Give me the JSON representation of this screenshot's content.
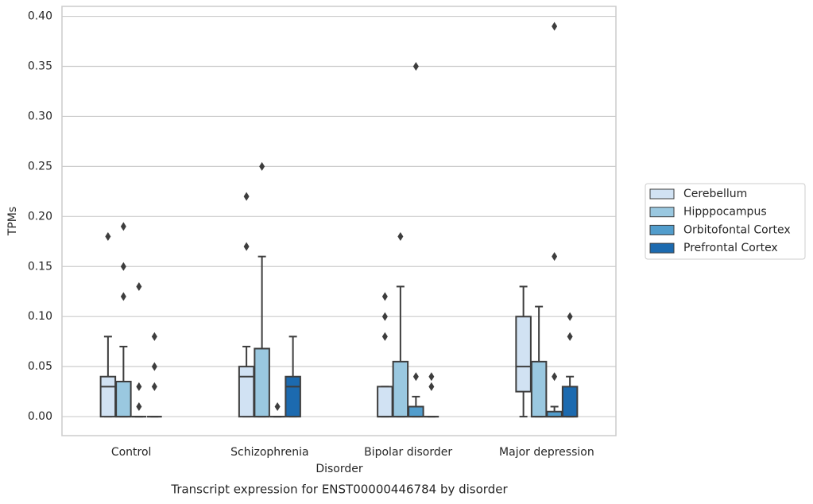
{
  "chart_data": {
    "type": "box",
    "title": "Transcript expression for ENST00000446784 by disorder",
    "x_label": "Disorder",
    "y_label": "TPMs",
    "categories": [
      "Control",
      "Schizophrenia",
      "Bipolar disorder",
      "Major depression"
    ],
    "ylim": [
      -0.019,
      0.41
    ],
    "yticks": [
      {
        "value": 0,
        "label": "0.00"
      },
      {
        "value": 0.05,
        "label": "0.05"
      },
      {
        "value": 0.1,
        "label": "0.10"
      },
      {
        "value": 0.15,
        "label": "0.15"
      },
      {
        "value": 0.2,
        "label": "0.20"
      },
      {
        "value": 0.25,
        "label": "0.25"
      },
      {
        "value": 0.3,
        "label": "0.30"
      },
      {
        "value": 0.35,
        "label": "0.35"
      },
      {
        "value": 0.4,
        "label": "0.40"
      }
    ],
    "grid": true,
    "legend": "right",
    "series": [
      {
        "name": "Cerebellum",
        "color": "#d1e2f3",
        "values": [
          {
            "whislo": 0,
            "q1": 0,
            "med": 0.03,
            "q3": 0.04,
            "whishi": 0.08,
            "fliers": [
              0.18
            ]
          },
          {
            "whislo": 0,
            "q1": 0,
            "med": 0.04,
            "q3": 0.05,
            "whishi": 0.07,
            "fliers": [
              0.22,
              0.17
            ]
          },
          {
            "whislo": 0,
            "q1": 0,
            "med": 0,
            "q3": 0.03,
            "whishi": 0.03,
            "fliers": [
              0.12,
              0.1,
              0.08
            ]
          },
          {
            "whislo": 0,
            "q1": 0.025,
            "med": 0.05,
            "q3": 0.1,
            "whishi": 0.13,
            "fliers": []
          }
        ]
      },
      {
        "name": "Hipppocampus",
        "color": "#9ac8e0",
        "values": [
          {
            "whislo": 0,
            "q1": 0,
            "med": 0,
            "q3": 0.035,
            "whishi": 0.07,
            "fliers": [
              0.19,
              0.15,
              0.12
            ]
          },
          {
            "whislo": 0,
            "q1": 0,
            "med": 0,
            "q3": 0.068,
            "whishi": 0.16,
            "fliers": [
              0.25
            ]
          },
          {
            "whislo": 0,
            "q1": 0,
            "med": 0,
            "q3": 0.055,
            "whishi": 0.13,
            "fliers": [
              0.18
            ]
          },
          {
            "whislo": 0,
            "q1": 0,
            "med": 0,
            "q3": 0.055,
            "whishi": 0.11,
            "fliers": []
          }
        ]
      },
      {
        "name": "Orbitofontal Cortex",
        "color": "#529dcc",
        "values": [
          {
            "whislo": 0,
            "q1": 0,
            "med": 0,
            "q3": 0,
            "whishi": 0,
            "fliers": [
              0.13,
              0.03,
              0.01
            ]
          },
          {
            "whislo": 0,
            "q1": 0,
            "med": 0,
            "q3": 0,
            "whishi": 0,
            "fliers": [
              0.01
            ]
          },
          {
            "whislo": 0,
            "q1": 0,
            "med": 0,
            "q3": 0.01,
            "whishi": 0.02,
            "fliers": [
              0.35,
              0.04
            ]
          },
          {
            "whislo": 0,
            "q1": 0,
            "med": 0,
            "q3": 0.005,
            "whishi": 0.01,
            "fliers": [
              0.39,
              0.16,
              0.04
            ]
          }
        ]
      },
      {
        "name": "Prefrontal Cortex",
        "color": "#1c6aaf",
        "values": [
          {
            "whislo": 0,
            "q1": 0,
            "med": 0,
            "q3": 0,
            "whishi": 0,
            "fliers": [
              0.08,
              0.05,
              0.03
            ]
          },
          {
            "whislo": 0,
            "q1": 0,
            "med": 0.03,
            "q3": 0.04,
            "whishi": 0.08,
            "fliers": []
          },
          {
            "whislo": 0,
            "q1": 0,
            "med": 0,
            "q3": 0,
            "whishi": 0,
            "fliers": [
              0.04,
              0.03
            ]
          },
          {
            "whislo": 0,
            "q1": 0,
            "med": 0,
            "q3": 0.03,
            "whishi": 0.04,
            "fliers": [
              0.1,
              0.08
            ]
          }
        ]
      }
    ]
  }
}
